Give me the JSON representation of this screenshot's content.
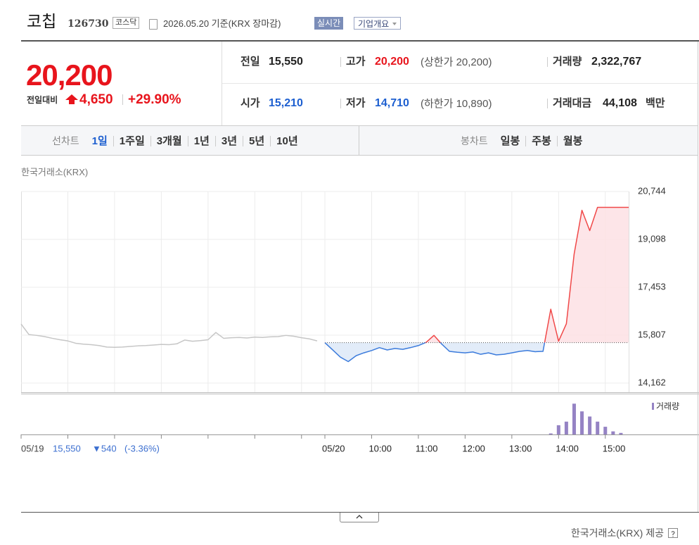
{
  "header": {
    "name": "코칩",
    "code": "126730",
    "market": "코스닥",
    "date": "2026.05.20 기준(KRX 장마감)",
    "realtime": "실시간",
    "company": "기업개요"
  },
  "summary": {
    "price": "20,200",
    "change_label": "전일대비",
    "change": "4,650",
    "rate": "+29.90%",
    "items": [
      {
        "label": "전일",
        "value": "15,550"
      },
      {
        "label": "고가",
        "value": "20,200",
        "note": "(상한가 20,200)"
      },
      {
        "label": "거래량",
        "value": "2,322,767"
      },
      {
        "label": "시가",
        "value": "15,210"
      },
      {
        "label": "저가",
        "value": "14,710",
        "note": "(하한가 10,890)"
      },
      {
        "label": "거래대금",
        "value": "44,108",
        "unit": "백만"
      }
    ]
  },
  "tabs": {
    "line_label": "선차트",
    "line": [
      "1일",
      "1주일",
      "3개월",
      "1년",
      "3년",
      "5년",
      "10년"
    ],
    "candle_label": "봉차트",
    "candle": [
      "일봉",
      "주봉",
      "월봉"
    ]
  },
  "source_top": "한국거래소(KRX)",
  "chart_data": {
    "type": "line",
    "categories": [
      "05/19",
      null,
      null,
      null,
      null,
      null,
      null,
      null,
      null,
      null,
      null,
      null,
      null,
      null,
      null,
      null,
      null,
      null,
      null,
      null,
      null,
      null,
      null,
      null,
      null,
      null,
      null,
      null,
      null,
      null,
      null,
      null,
      null,
      null,
      null,
      null,
      null,
      null,
      null,
      "05/20",
      null,
      null,
      null,
      null,
      null,
      "10:00",
      null,
      null,
      null,
      null,
      null,
      "11:00",
      null,
      null,
      null,
      null,
      null,
      "12:00",
      null,
      null,
      null,
      null,
      null,
      "13:00",
      null,
      null,
      null,
      null,
      null,
      "14:00",
      null,
      null,
      null,
      null,
      null,
      "15:00",
      null,
      null,
      null
    ],
    "baseline": 15550,
    "series": [
      {
        "color": "#c6c6c6",
        "values": [
          16190,
          15830,
          15800,
          15760,
          15700,
          15650,
          15610,
          15530,
          15500,
          15480,
          15450,
          15400,
          15390,
          15400,
          15420,
          15440,
          15450,
          15470,
          15490,
          15480,
          15510,
          15640,
          15600,
          15620,
          15650,
          15900,
          15700,
          15720,
          15730,
          15710,
          15740,
          15730,
          15750,
          15760,
          15800,
          15770,
          15720,
          15680,
          15610,
          null,
          null,
          null,
          null,
          null,
          null,
          null,
          null,
          null,
          null,
          null,
          null,
          null,
          null,
          null,
          null,
          null,
          null,
          null,
          null,
          null,
          null,
          null,
          null,
          null,
          null,
          null,
          null,
          null,
          null,
          null,
          null,
          null,
          null,
          null,
          null,
          null,
          null,
          null,
          null
        ]
      },
      {
        "color": "#3b7bdc",
        "up_color": "#f04848",
        "fill": "#dfeaf8",
        "up_fill": "#fde2e5",
        "values": [
          null,
          null,
          null,
          null,
          null,
          null,
          null,
          null,
          null,
          null,
          null,
          null,
          null,
          null,
          null,
          null,
          null,
          null,
          null,
          null,
          null,
          null,
          null,
          null,
          null,
          null,
          null,
          null,
          null,
          null,
          null,
          null,
          null,
          null,
          null,
          null,
          null,
          null,
          null,
          15550,
          15300,
          15050,
          14900,
          15100,
          15200,
          15280,
          15380,
          15300,
          15350,
          15320,
          15380,
          15450,
          15560,
          15800,
          15500,
          15250,
          15220,
          15200,
          15230,
          15150,
          15200,
          15130,
          15150,
          15200,
          15250,
          15280,
          15240,
          15250,
          16700,
          15600,
          16200,
          18600,
          20100,
          19400,
          20200,
          20200,
          20200,
          20200,
          20200
        ]
      },
      {
        "name": "거래량",
        "type": "bar",
        "axis": "y2",
        "color": "#9583c4",
        "values": [
          null,
          null,
          null,
          null,
          null,
          null,
          null,
          null,
          null,
          null,
          null,
          null,
          null,
          null,
          null,
          null,
          null,
          null,
          null,
          null,
          null,
          null,
          null,
          null,
          null,
          null,
          null,
          null,
          null,
          null,
          null,
          null,
          null,
          null,
          null,
          null,
          null,
          null,
          null,
          null,
          null,
          null,
          null,
          null,
          null,
          null,
          null,
          null,
          null,
          null,
          null,
          null,
          null,
          null,
          null,
          null,
          null,
          null,
          null,
          null,
          null,
          null,
          null,
          null,
          null,
          null,
          null,
          null,
          20000,
          180000,
          250000,
          600000,
          450000,
          350000,
          250000,
          150000,
          60000,
          30000,
          null
        ]
      }
    ],
    "ylim": [
      14162,
      20744
    ],
    "yticks": [
      {
        "value": 20744,
        "label": "20,744"
      },
      {
        "value": 19098,
        "label": "19,098"
      },
      {
        "value": 17453,
        "label": "17,453"
      },
      {
        "value": 15807,
        "label": "15,807"
      },
      {
        "value": 14162,
        "label": "14,162"
      }
    ],
    "y2lim": [
      0,
      700000
    ],
    "grid": true
  },
  "prev_day": {
    "close": "15,550",
    "change": "▼540",
    "rate": "(-3.36%)"
  },
  "footer": "한국거래소(KRX) 제공"
}
